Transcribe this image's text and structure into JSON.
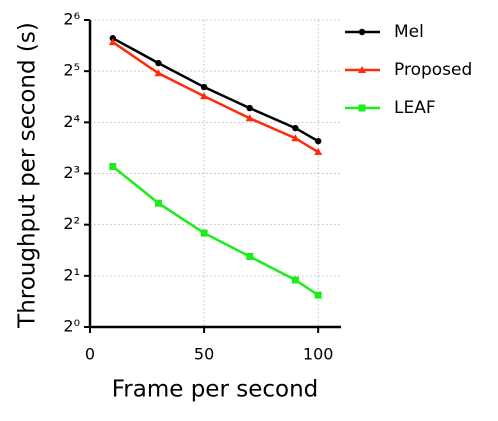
{
  "chart_data": {
    "type": "line",
    "x_label": "Frame per second",
    "y_label": "Throughput per second (s)",
    "log_y": true,
    "log_base": 2,
    "grid": true,
    "legend": "upper right",
    "xlim": [
      0,
      110
    ],
    "xticks": [
      0,
      50,
      100
    ],
    "ylim": [
      1,
      64
    ],
    "yticks": [
      {
        "value": 1,
        "label": "2⁰"
      },
      {
        "value": 2,
        "label": "2¹"
      },
      {
        "value": 4,
        "label": "2²"
      },
      {
        "value": 8,
        "label": "2³"
      },
      {
        "value": 16,
        "label": "2⁴"
      },
      {
        "value": 32,
        "label": "2⁵"
      },
      {
        "value": 64,
        "label": "2⁶"
      }
    ],
    "x": [
      10,
      30,
      50,
      70,
      90,
      100
    ],
    "series": [
      {
        "name": "Mel",
        "color": "#000000",
        "marker": "circle",
        "values": [
          50,
          35.7,
          25.8,
          19.4,
          14.8,
          12.4
        ]
      },
      {
        "name": "Proposed",
        "color": "#ff2a0a",
        "marker": "triangle",
        "values": [
          47.4,
          31.1,
          22.8,
          16.9,
          12.9,
          10.7
        ]
      },
      {
        "name": "LEAF",
        "color": "#1aee1a",
        "marker": "square",
        "values": [
          8.8,
          5.35,
          3.57,
          2.6,
          1.89,
          1.54
        ]
      }
    ]
  }
}
